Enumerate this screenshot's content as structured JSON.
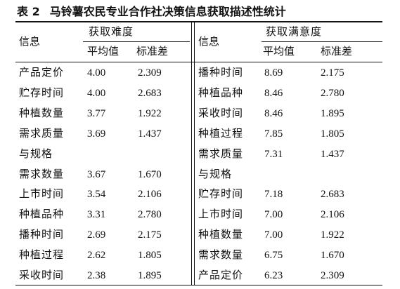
{
  "title": {
    "label": "表 2",
    "text": "马铃薯农民专业合作社决策信息获取描述性统计"
  },
  "left": {
    "header": {
      "info": "信息",
      "group": "获取难度",
      "mean": "平均值",
      "sd": "标准差"
    },
    "rows": [
      [
        "产品定价",
        "4.00",
        "2.309"
      ],
      [
        "贮存时间",
        "4.00",
        "2.683"
      ],
      [
        "种植数量",
        "3.77",
        "1.922"
      ],
      [
        "需求质量与规格",
        "3.69",
        "1.437"
      ],
      [
        "需求数量",
        "3.67",
        "1.670"
      ],
      [
        "上市时间",
        "3.54",
        "2.106"
      ],
      [
        "种植品种",
        "3.31",
        "2.780"
      ],
      [
        "播种时间",
        "2.69",
        "2.175"
      ],
      [
        "种植过程",
        "2.62",
        "1.805"
      ],
      [
        "采收时间",
        "2.38",
        "1.895"
      ]
    ]
  },
  "right": {
    "header": {
      "info": "信息",
      "group": "获取满意度",
      "mean": "平均值",
      "sd": "标准差"
    },
    "rows": [
      [
        "播种时间",
        "8.69",
        "2.175"
      ],
      [
        "种植品种",
        "8.46",
        "2.780"
      ],
      [
        "采收时间",
        "8.46",
        "1.895"
      ],
      [
        "种植过程",
        "7.85",
        "1.805"
      ],
      [
        "需求质量与规格",
        "7.31",
        "1.437"
      ],
      [
        "贮存时间",
        "7.18",
        "2.683"
      ],
      [
        "上市时间",
        "7.00",
        "2.106"
      ],
      [
        "种植数量",
        "7.00",
        "1.922"
      ],
      [
        "需求数量",
        "6.75",
        "1.670"
      ],
      [
        "产品定价",
        "6.23",
        "2.309"
      ]
    ]
  }
}
